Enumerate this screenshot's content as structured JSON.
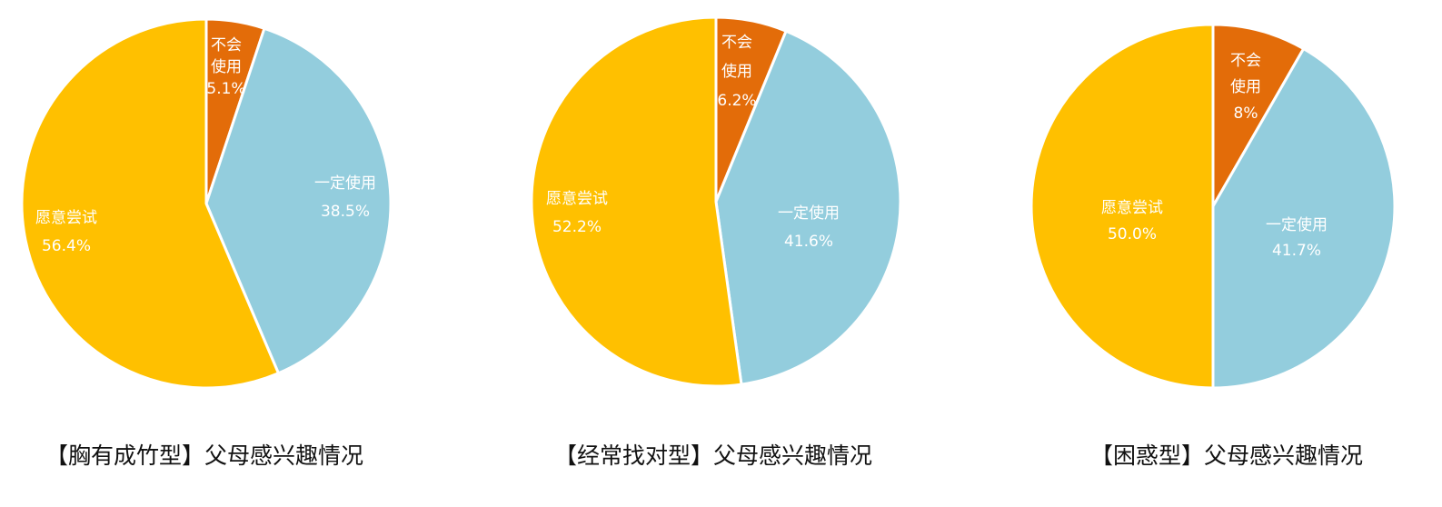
{
  "chart_data": [
    {
      "type": "pie",
      "title": "【胸有成竹型】父母感兴趣情况",
      "slices": [
        {
          "label_lines": [
            "不会",
            "使用"
          ],
          "value_text": "5.1%",
          "value": 5.1,
          "color": "#E36C09"
        },
        {
          "label_lines": [
            "一定使用"
          ],
          "value_text": "38.5%",
          "value": 38.5,
          "color": "#93CDDD"
        },
        {
          "label_lines": [
            "愿意尝试"
          ],
          "value_text": "56.4%",
          "value": 56.4,
          "color": "#FFC000"
        }
      ]
    },
    {
      "type": "pie",
      "title": "【经常找对型】父母感兴趣情况",
      "slices": [
        {
          "label_lines": [
            "不会",
            "使用"
          ],
          "value_text": "6.2%",
          "value": 6.2,
          "color": "#E36C09"
        },
        {
          "label_lines": [
            "一定使用"
          ],
          "value_text": "41.6%",
          "value": 41.6,
          "color": "#93CDDD"
        },
        {
          "label_lines": [
            "愿意尝试"
          ],
          "value_text": "52.2%",
          "value": 52.2,
          "color": "#FFC000"
        }
      ]
    },
    {
      "type": "pie",
      "title": "【困惑型】父母感兴趣情况",
      "slices": [
        {
          "label_lines": [
            "不会",
            "使用"
          ],
          "value_text": "8%",
          "value": 8.3,
          "color": "#E36C09"
        },
        {
          "label_lines": [
            "一定使用"
          ],
          "value_text": "41.7%",
          "value": 41.7,
          "color": "#93CDDD"
        },
        {
          "label_lines": [
            "愿意尝试"
          ],
          "value_text": "50.0%",
          "value": 50.0,
          "color": "#FFC000"
        }
      ]
    }
  ]
}
